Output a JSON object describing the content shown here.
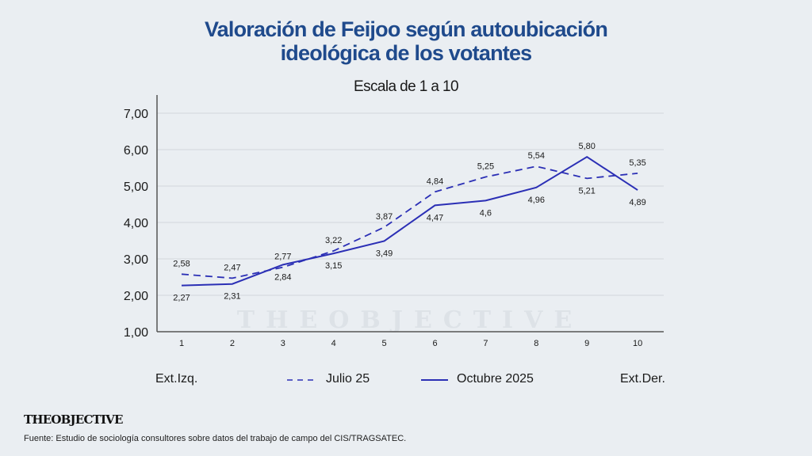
{
  "header": {
    "title_line1": "Valoración de Feijoo según autoubicación",
    "title_line2": "ideológica de los votantes",
    "subtitle": "Escala de 1 a 10"
  },
  "watermark": "THEOBJECTIVE",
  "legend": {
    "left_label": "Ext.Izq.",
    "right_label": "Ext.Der.",
    "series": [
      {
        "name": "Julio 25",
        "style": "dashed"
      },
      {
        "name": "Octubre 2025",
        "style": "solid"
      }
    ]
  },
  "footer": {
    "logo": "THEOBJECTIVE",
    "source": "Fuente: Estudio de sociología consultores sobre datos del trabajo de campo del CIS/TRAGSATEC."
  },
  "colors": {
    "background": "#eaeef2",
    "title": "#1f4a8c",
    "line": "#2b2fb5",
    "grid": "#d3d7dc",
    "axis": "#555555"
  },
  "chart_data": {
    "type": "line",
    "title": "Valoración de Feijoo según autoubicación ideológica de los votantes",
    "subtitle": "Escala de 1 a 10",
    "xlabel": "",
    "ylabel": "",
    "x": [
      1,
      2,
      3,
      4,
      5,
      6,
      7,
      8,
      9,
      10
    ],
    "x_tick_labels": [
      "1",
      "2",
      "3",
      "4",
      "5",
      "6",
      "7",
      "8",
      "9",
      "10"
    ],
    "y_tick_labels": [
      "1,00",
      "2,00",
      "3,00",
      "4,00",
      "5,00",
      "6,00",
      "7,00"
    ],
    "y_ticks": [
      1,
      2,
      3,
      4,
      5,
      6,
      7
    ],
    "ylim": [
      1,
      7
    ],
    "grid": true,
    "legend_position": "bottom",
    "series": [
      {
        "name": "Julio 25",
        "style": "dashed",
        "values": [
          2.58,
          2.47,
          2.77,
          3.22,
          3.87,
          4.84,
          5.25,
          5.54,
          5.21,
          5.35
        ],
        "labels": [
          "2,58",
          "2,47",
          "2,77",
          "3,22",
          "3,87",
          "4,84",
          "5,25",
          "5,54",
          "5,21",
          "5,35"
        ],
        "label_positions": [
          "above",
          "above",
          "above",
          "above",
          "above",
          "above",
          "above",
          "above",
          "below",
          "above"
        ]
      },
      {
        "name": "Octubre 2025",
        "style": "solid",
        "values": [
          2.27,
          2.31,
          2.84,
          3.15,
          3.49,
          4.47,
          4.6,
          4.96,
          5.8,
          4.89
        ],
        "labels": [
          "2,27",
          "2,31",
          "2,84",
          "3,15",
          "3,49",
          "4,47",
          "4,6",
          "4,96",
          "5,80",
          "4,89"
        ],
        "label_positions": [
          "below",
          "below",
          "below",
          "below",
          "below",
          "below",
          "below",
          "below",
          "above",
          "below"
        ]
      }
    ]
  }
}
